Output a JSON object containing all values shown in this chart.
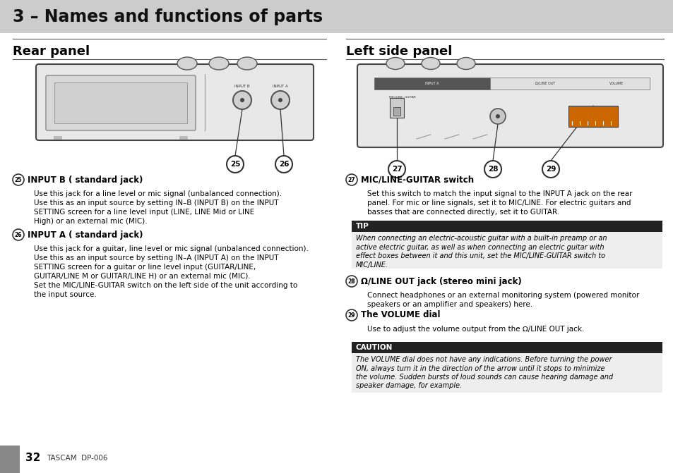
{
  "title": "3 – Names and functions of parts",
  "title_bg": "#cccccc",
  "page_bg": "#ffffff",
  "section_left": "Rear panel",
  "section_right": "Left side panel",
  "footer_num": "32",
  "footer_brand": "TASCAM  DP-006",
  "item25_title": "INPUT B ( standard jack)",
  "item26_title": "INPUT A ( standard jack)",
  "item27_title": "MIC/LINE-GUITAR switch",
  "item27_body_line1": "Set this switch to match the input signal to the ‘INPUT A’ jack on the rear",
  "item27_body_line2": "panel. For mic or line signals, set it to ‘MIC/LINE’. For electric guitars and",
  "item27_body_line3": "basses that are connected directly, set it to ‘GUITAR’.",
  "tip_title": "TIP",
  "tip_body_line1": "When connecting an electric-acoustic guitar with a built-in preamp or an",
  "tip_body_line2": "active electric guitar, as well as when connecting an electric guitar with",
  "tip_body_line3": "effect boxes between it and this unit, set the MIC/LINE-GUITAR switch to",
  "tip_body_line4": "MIC/LINE.",
  "item28_title": "Ω/LINE OUT jack (stereo mini jack)",
  "item28_body_line1": "Connect headphones or an external monitoring system (powered monitor",
  "item28_body_line2": "speakers or an amplifier and speakers) here.",
  "item29_title": "The VOLUME dial",
  "item29_body": "Use to adjust the volume output from the Ω/LINE OUT jack.",
  "caution_title": "CAUTION",
  "caution_body_line1": "The VOLUME dial does not have any indications. Before turning the power",
  "caution_body_line2": "ON, always turn it in the direction of the arrow until it stops to minimize",
  "caution_body_line3": "the volume. Sudden bursts of loud sounds can cause hearing damage and",
  "caution_body_line4": "speaker damage, for example."
}
